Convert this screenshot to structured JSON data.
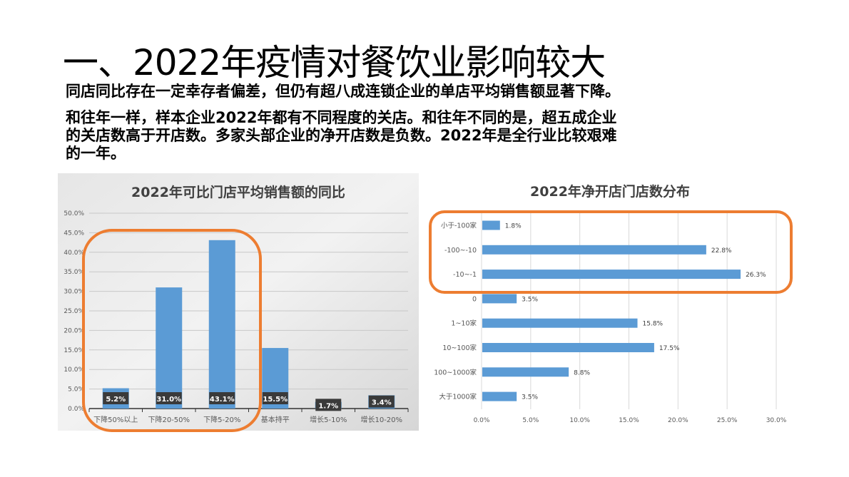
{
  "slide": {
    "title": "一、2022年疫情对餐饮业影响较大",
    "paragraphs": [
      "同店同比存在一定幸存者偏差，但仍有超八成连锁企业的单店平均销售额显著下降。",
      "和往年一样，样本企业2022年都有不同程度的关店。和往年不同的是，超五成企业",
      "的关店数高于开店数。多家头部企业的净开店数是负数。2022年是全行业比较艰难",
      "的一年。"
    ]
  },
  "colors": {
    "bar": "#5B9BD5",
    "highlight": "#ED7D31",
    "label_bg": "#3A3A3A"
  },
  "chart_data": [
    {
      "type": "bar",
      "title": "2022年可比门店平均销售额的同比",
      "categories": [
        "下降50%以上",
        "下降20-50%",
        "下降5-20%",
        "基本持平",
        "增长5-10%",
        "增长10-20%"
      ],
      "values": [
        5.2,
        31.0,
        43.1,
        15.5,
        1.7,
        3.4
      ],
      "data_labels": [
        "5.2%",
        "31.0%",
        "43.1%",
        "15.5%",
        "1.7%",
        "3.4%"
      ],
      "yticks": [
        "0.0%",
        "5.0%",
        "10.0%",
        "15.0%",
        "20.0%",
        "25.0%",
        "30.0%",
        "35.0%",
        "40.0%",
        "45.0%",
        "50.0%"
      ],
      "ylim": [
        0,
        50
      ],
      "grid": true,
      "highlighted_categories": [
        "下降50%以上",
        "下降20-50%",
        "下降5-20%"
      ]
    },
    {
      "type": "bar",
      "orientation": "horizontal",
      "title": "2022年净开店门店数分布",
      "categories": [
        "小于-100家",
        "-100~-10",
        "-10~-1",
        "0",
        "1~10家",
        "10~100家",
        "100~1000家",
        "大于1000家"
      ],
      "values": [
        1.8,
        22.8,
        26.3,
        3.5,
        15.8,
        17.5,
        8.8,
        3.5
      ],
      "data_labels": [
        "1.8%",
        "22.8%",
        "26.3%",
        "3.5%",
        "15.8%",
        "17.5%",
        "8.8%",
        "3.5%"
      ],
      "xticks": [
        "0.0%",
        "5.0%",
        "10.0%",
        "15.0%",
        "20.0%",
        "25.0%",
        "30.0%"
      ],
      "xlim": [
        0,
        30
      ],
      "grid": true,
      "highlighted_categories": [
        "小于-100家",
        "-100~-10",
        "-10~-1"
      ]
    }
  ]
}
